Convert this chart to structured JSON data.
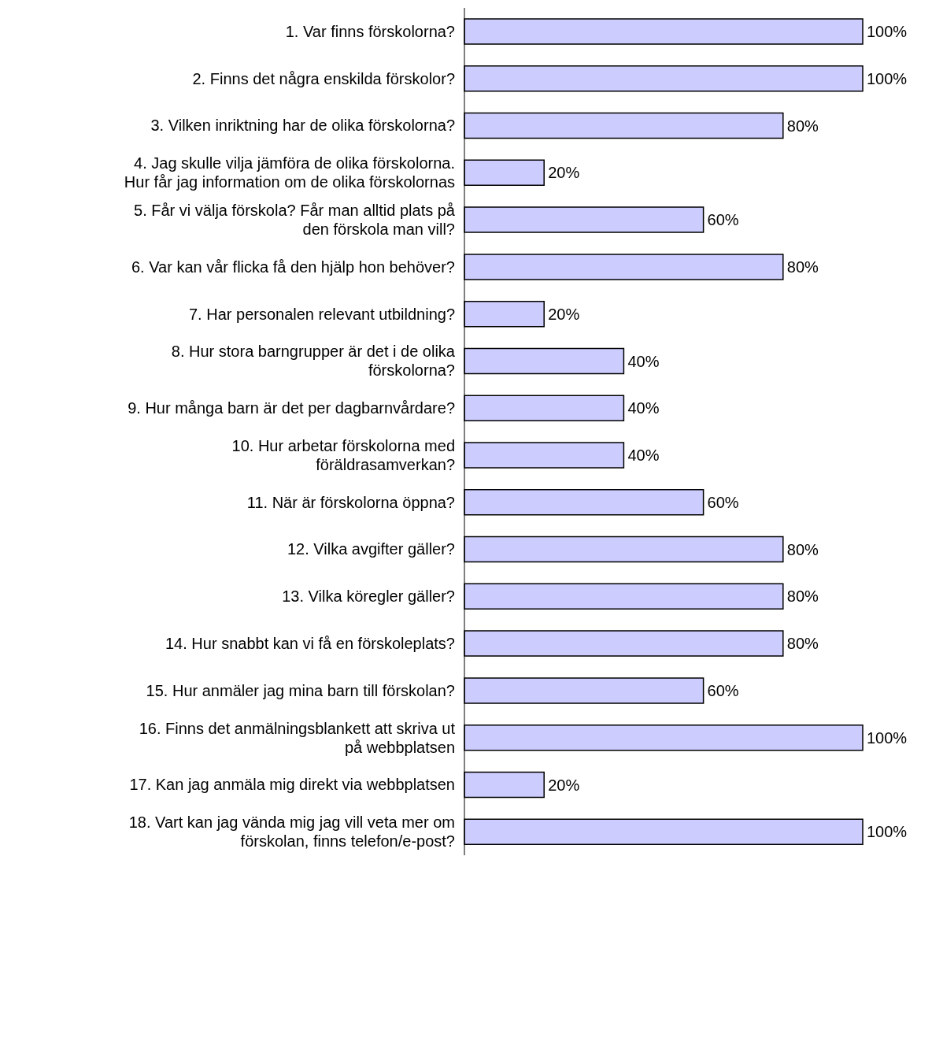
{
  "chart_data": {
    "type": "bar",
    "orientation": "horizontal",
    "categories": [
      "1. Var finns förskolorna?",
      "2. Finns det några enskilda förskolor?",
      "3. Vilken inriktning har de olika förskolorna?",
      "4. Jag skulle vilja jämföra de olika förskolorna.\nHur får jag information om de olika förskolornas",
      "5. Får vi välja förskola? Får man alltid plats på\nden förskola man vill?",
      "6. Var kan vår flicka få den hjälp hon behöver?",
      "7. Har personalen relevant utbildning?",
      "8. Hur stora barngrupper är det i de olika\nförskolorna?",
      "9. Hur många barn är det per dagbarnvårdare?",
      "10. Hur arbetar förskolorna med\nföräldrasamverkan?",
      "11. När är förskolorna öppna?",
      "12. Vilka avgifter gäller?",
      "13. Vilka köregler gäller?",
      "14. Hur snabbt kan vi få en förskoleplats?",
      "15. Hur anmäler jag mina barn till förskolan?",
      "16. Finns det anmälningsblankett att skriva ut\npå webbplatsen",
      "17. Kan jag anmäla mig direkt via webbplatsen",
      "18. Vart kan jag vända mig jag vill veta mer om\nförskolan, finns telefon/e-post?"
    ],
    "values": [
      100,
      100,
      80,
      20,
      60,
      80,
      20,
      40,
      40,
      40,
      60,
      80,
      80,
      80,
      60,
      100,
      20,
      100
    ],
    "value_labels": [
      "100%",
      "100%",
      "80%",
      "20%",
      "60%",
      "80%",
      "20%",
      "40%",
      "40%",
      "40%",
      "60%",
      "80%",
      "80%",
      "80%",
      "60%",
      "100%",
      "20%",
      "100%"
    ],
    "color": "#ccccff",
    "tick_labels": "y"
  }
}
